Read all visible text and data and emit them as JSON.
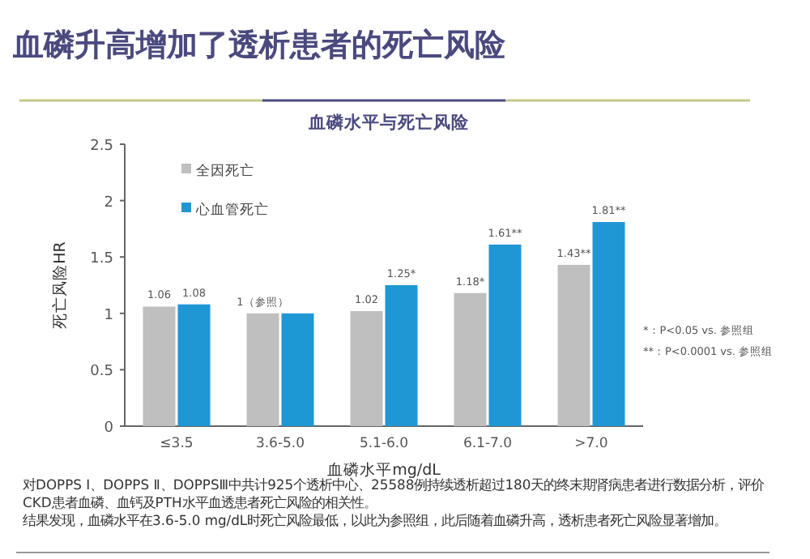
{
  "chart_data": {
    "type": "bar",
    "title": "血磷升高增加了透析患者的死亡风险",
    "subtitle": "血磷水平与死亡风险",
    "xlabel": "血磷水平mg/dL",
    "ylabel": "死亡风险HR",
    "categories": [
      "≤3.5",
      "3.6-5.0",
      "5.1-6.0",
      "6.1-7.0",
      ">7.0"
    ],
    "series": [
      {
        "name": "全因死亡",
        "color": "#bfbfbf",
        "values": [
          1.06,
          1,
          1.02,
          1.18,
          1.43
        ],
        "value_labels": [
          "1.06",
          "1（参照）",
          "1.02",
          "1.18*",
          "1.43**"
        ]
      },
      {
        "name": "心血管死亡",
        "color": "#1f97d4",
        "values": [
          1.08,
          1,
          1.25,
          1.61,
          1.81
        ],
        "value_labels": [
          "1.08",
          null,
          "1.25*",
          "1.61**",
          "1.81**"
        ]
      }
    ],
    "ylim": [
      0,
      2.5
    ],
    "yticks": [
      0,
      0.5,
      1,
      1.5,
      2,
      2.5
    ],
    "grid": false,
    "legend": "top left",
    "annotations": [
      "*：P<0.05 vs. 参照组",
      "**：P<0.0001 vs. 参照组",
      "对DOPPS Ⅰ、DOPPS Ⅱ、DOPPSⅢ中共计925个透析中心、25588例持续透析超过180天的终末期肾病患者进行数据分析，评价CKD患者血磷、血钙及PTH水平血透患者死亡风险的相关性。",
      "结果发现，血磷水平在3.6-5.0 mg/dL时死亡风险最低，以此为参照组，此后随着血磷升高，透析患者死亡风险显著增加。"
    ]
  }
}
